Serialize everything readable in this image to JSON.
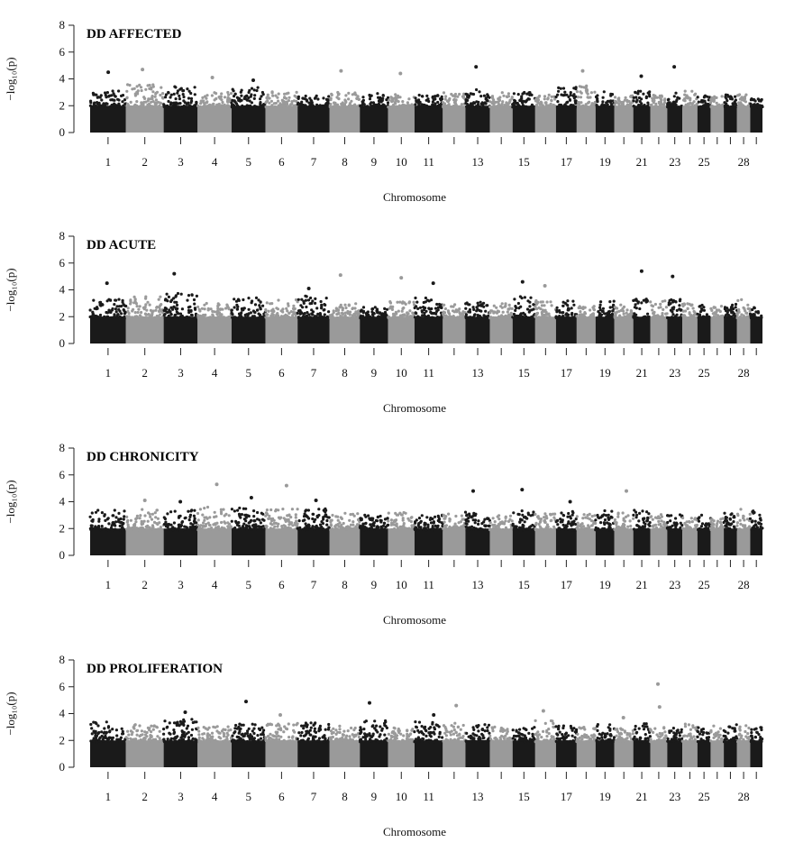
{
  "colors": {
    "dark": "#1a1a1a",
    "light": "#9a9a9a",
    "axis": "#222222"
  },
  "chart_data": [
    {
      "type": "scatter",
      "subtype": "manhattan",
      "title": "DD AFFECTED",
      "xlabel": "Chromosome",
      "ylabel": "−log₁₀(p)",
      "ylim": [
        0,
        8
      ],
      "yticks": [
        0,
        2,
        4,
        6,
        8
      ],
      "xtick_labels": [
        "1",
        "2",
        "3",
        "4",
        "5",
        "6",
        "7",
        "8",
        "9",
        "10",
        "11",
        "13",
        "15",
        "17",
        "19",
        "21",
        "23",
        "25",
        "28"
      ],
      "chromosomes": [
        "1",
        "2",
        "3",
        "4",
        "5",
        "6",
        "7",
        "8",
        "9",
        "10",
        "11",
        "12",
        "13",
        "14",
        "15",
        "16",
        "17",
        "18",
        "19",
        "20",
        "21",
        "22",
        "23",
        "24",
        "25",
        "26",
        "27",
        "28",
        "29"
      ],
      "chromosome_peaks": [
        3.1,
        3.6,
        3.5,
        3.0,
        3.5,
        3.1,
        2.8,
        3.0,
        3.0,
        2.9,
        2.8,
        3.0,
        3.2,
        3.0,
        3.0,
        2.8,
        3.4,
        3.5,
        3.1,
        2.8,
        3.2,
        2.8,
        3.0,
        3.1,
        2.8,
        2.7,
        2.9,
        2.9,
        2.6
      ],
      "top_hits": [
        {
          "chromosome": "1",
          "y": 4.5
        },
        {
          "chromosome": "2",
          "y": 4.7
        },
        {
          "chromosome": "4",
          "y": 4.1
        },
        {
          "chromosome": "5",
          "y": 3.9
        },
        {
          "chromosome": "8",
          "y": 4.6
        },
        {
          "chromosome": "10",
          "y": 4.4
        },
        {
          "chromosome": "13",
          "y": 4.9
        },
        {
          "chromosome": "18",
          "y": 4.6
        },
        {
          "chromosome": "21",
          "y": 4.2
        },
        {
          "chromosome": "23",
          "y": 4.9
        }
      ]
    },
    {
      "type": "scatter",
      "subtype": "manhattan",
      "title": "DD ACUTE",
      "xlabel": "Chromosome",
      "ylabel": "−log₁₀(p)",
      "ylim": [
        0,
        8
      ],
      "yticks": [
        0,
        2,
        4,
        6,
        8
      ],
      "xtick_labels": [
        "1",
        "2",
        "3",
        "4",
        "5",
        "6",
        "7",
        "8",
        "9",
        "10",
        "11",
        "13",
        "15",
        "17",
        "19",
        "21",
        "23",
        "25",
        "28"
      ],
      "chromosomes": [
        "1",
        "2",
        "3",
        "4",
        "5",
        "6",
        "7",
        "8",
        "9",
        "10",
        "11",
        "12",
        "13",
        "14",
        "15",
        "16",
        "17",
        "18",
        "19",
        "20",
        "21",
        "22",
        "23",
        "24",
        "25",
        "26",
        "27",
        "28",
        "29"
      ],
      "chromosome_peaks": [
        3.3,
        3.5,
        3.8,
        3.0,
        3.4,
        3.3,
        3.6,
        3.0,
        2.7,
        3.2,
        3.4,
        2.9,
        3.1,
        3.0,
        3.5,
        3.2,
        3.2,
        2.8,
        3.2,
        2.9,
        3.4,
        3.3,
        3.3,
        3.0,
        2.9,
        2.8,
        3.0,
        3.3,
        2.8
      ],
      "top_hits": [
        {
          "chromosome": "1",
          "y": 4.5
        },
        {
          "chromosome": "3",
          "y": 5.2
        },
        {
          "chromosome": "7",
          "y": 4.1
        },
        {
          "chromosome": "8",
          "y": 5.1
        },
        {
          "chromosome": "10",
          "y": 4.9
        },
        {
          "chromosome": "11",
          "y": 4.5
        },
        {
          "chromosome": "15",
          "y": 4.6
        },
        {
          "chromosome": "16",
          "y": 4.3
        },
        {
          "chromosome": "21",
          "y": 5.4
        },
        {
          "chromosome": "23",
          "y": 5.0
        }
      ]
    },
    {
      "type": "scatter",
      "subtype": "manhattan",
      "title": "DD CHRONICITY",
      "xlabel": "Chromosome",
      "ylabel": "−log₁₀(p)",
      "ylim": [
        0,
        8
      ],
      "yticks": [
        0,
        2,
        4,
        6,
        8
      ],
      "xtick_labels": [
        "1",
        "2",
        "3",
        "4",
        "5",
        "6",
        "7",
        "8",
        "9",
        "10",
        "11",
        "13",
        "15",
        "17",
        "19",
        "21",
        "23",
        "25",
        "28"
      ],
      "chromosomes": [
        "1",
        "2",
        "3",
        "4",
        "5",
        "6",
        "7",
        "8",
        "9",
        "10",
        "11",
        "12",
        "13",
        "14",
        "15",
        "16",
        "17",
        "18",
        "19",
        "20",
        "21",
        "22",
        "23",
        "24",
        "25",
        "26",
        "27",
        "28",
        "29"
      ],
      "chromosome_peaks": [
        3.4,
        3.5,
        3.4,
        3.6,
        3.7,
        3.5,
        3.5,
        3.2,
        3.0,
        3.2,
        3.0,
        3.1,
        3.3,
        3.0,
        3.4,
        3.1,
        3.3,
        3.2,
        3.4,
        3.2,
        3.4,
        3.1,
        3.2,
        3.0,
        3.1,
        3.0,
        3.3,
        3.5,
        3.4
      ],
      "top_hits": [
        {
          "chromosome": "2",
          "y": 4.1
        },
        {
          "chromosome": "3",
          "y": 4.0
        },
        {
          "chromosome": "4",
          "y": 5.3
        },
        {
          "chromosome": "5",
          "y": 4.3
        },
        {
          "chromosome": "6",
          "y": 5.2
        },
        {
          "chromosome": "7",
          "y": 4.1
        },
        {
          "chromosome": "13",
          "y": 4.8
        },
        {
          "chromosome": "15",
          "y": 4.9
        },
        {
          "chromosome": "17",
          "y": 4.0
        },
        {
          "chromosome": "20",
          "y": 4.8
        }
      ]
    },
    {
      "type": "scatter",
      "subtype": "manhattan",
      "title": "DD PROLIFERATION",
      "xlabel": "Chromosome",
      "ylabel": "−log₁₀(p)",
      "ylim": [
        0,
        8
      ],
      "yticks": [
        0,
        2,
        4,
        6,
        8
      ],
      "xtick_labels": [
        "1",
        "2",
        "3",
        "4",
        "5",
        "6",
        "7",
        "8",
        "9",
        "10",
        "11",
        "13",
        "15",
        "17",
        "19",
        "21",
        "23",
        "25",
        "28"
      ],
      "chromosomes": [
        "1",
        "2",
        "3",
        "4",
        "5",
        "6",
        "7",
        "8",
        "9",
        "10",
        "11",
        "12",
        "13",
        "14",
        "15",
        "16",
        "17",
        "18",
        "19",
        "20",
        "21",
        "22",
        "23",
        "24",
        "25",
        "26",
        "27",
        "28",
        "29"
      ],
      "chromosome_peaks": [
        3.4,
        3.2,
        3.6,
        3.1,
        3.4,
        3.3,
        3.4,
        3.1,
        3.6,
        3.0,
        3.5,
        3.3,
        3.2,
        3.0,
        3.1,
        3.5,
        3.1,
        3.0,
        3.2,
        2.9,
        3.3,
        3.1,
        3.0,
        3.3,
        3.0,
        3.1,
        3.2,
        3.1,
        3.0
      ],
      "top_hits": [
        {
          "chromosome": "3",
          "y": 4.1
        },
        {
          "chromosome": "5",
          "y": 4.9
        },
        {
          "chromosome": "6",
          "y": 3.9
        },
        {
          "chromosome": "9",
          "y": 4.8
        },
        {
          "chromosome": "11",
          "y": 3.9
        },
        {
          "chromosome": "12",
          "y": 4.6
        },
        {
          "chromosome": "16",
          "y": 4.2
        },
        {
          "chromosome": "20",
          "y": 3.7
        },
        {
          "chromosome": "22",
          "y": 6.2
        },
        {
          "chromosome": "22",
          "y": 4.5
        }
      ]
    }
  ]
}
